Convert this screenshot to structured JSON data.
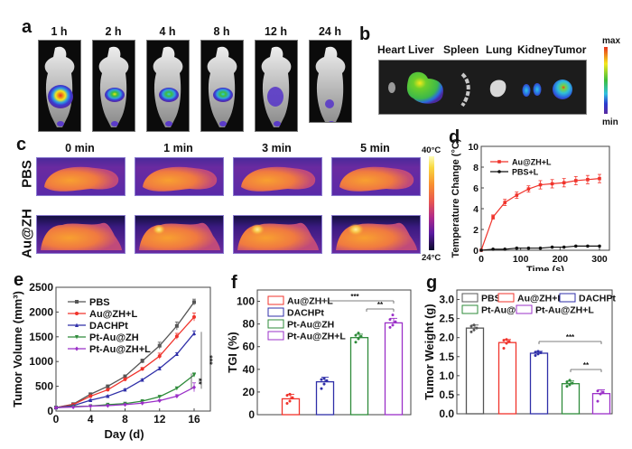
{
  "panels": {
    "a": {
      "label": "a",
      "timepoints": [
        "1 h",
        "2 h",
        "4 h",
        "8 h",
        "12 h",
        "24 h"
      ],
      "signal_intensity_relative": [
        1.0,
        0.75,
        0.55,
        0.55,
        0.35,
        0.2
      ]
    },
    "b": {
      "label": "b",
      "organs": [
        "Heart",
        "Liver",
        "Spleen",
        "Lung",
        "Kidney",
        "Tumor"
      ],
      "colorbar_max": "max",
      "colorbar_min": "min"
    },
    "c": {
      "label": "c",
      "timepoints": [
        "0 min",
        "1 min",
        "3 min",
        "5 min"
      ],
      "rows": [
        "PBS",
        "Au@ZH"
      ],
      "colorbar_max": "40°C",
      "colorbar_min": "24°C"
    },
    "d": {
      "label": "d"
    },
    "e": {
      "label": "e",
      "sig_long": "***",
      "sig_short": "**"
    },
    "f": {
      "label": "f",
      "sig_long": "***",
      "sig_short": "**"
    },
    "g": {
      "label": "g",
      "sig_long": "***",
      "sig_short": "**"
    }
  },
  "colors": {
    "PBS": "#555555",
    "Au@ZH+L": "#f0332b",
    "DACHPt": "#2f2fa8",
    "Pt-Au@ZH": "#2e8b3a",
    "Pt-Au@ZH+L": "#9b30c8",
    "PBS+L": "#111111"
  },
  "chart_data": [
    {
      "id": "d",
      "type": "line",
      "title": "",
      "xlabel": "Time (s)",
      "ylabel": "Temperature Change (°C)",
      "xlim": [
        0,
        300
      ],
      "ylim": [
        0,
        10
      ],
      "xticks": [
        0,
        100,
        200,
        300
      ],
      "yticks": [
        0,
        2,
        4,
        6,
        8,
        10
      ],
      "legend": "top-left",
      "x": [
        0,
        30,
        60,
        90,
        120,
        150,
        180,
        210,
        240,
        270,
        300
      ],
      "series": [
        {
          "name": "Au@ZH+L",
          "values": [
            0,
            3.2,
            4.6,
            5.3,
            5.9,
            6.3,
            6.4,
            6.5,
            6.7,
            6.8,
            6.9
          ],
          "errors": [
            0,
            0.2,
            0.3,
            0.3,
            0.3,
            0.4,
            0.4,
            0.4,
            0.4,
            0.4,
            0.4
          ]
        },
        {
          "name": "PBS+L",
          "values": [
            0,
            0.1,
            0.1,
            0.2,
            0.2,
            0.2,
            0.3,
            0.3,
            0.4,
            0.4,
            0.4
          ],
          "errors": [
            0,
            0.05,
            0.05,
            0.05,
            0.05,
            0.05,
            0.05,
            0.05,
            0.05,
            0.05,
            0.05
          ]
        }
      ]
    },
    {
      "id": "e",
      "type": "line",
      "title": "",
      "xlabel": "Day (d)",
      "ylabel": "Tumor Volume (mm³)",
      "xlim": [
        0,
        18
      ],
      "ylim": [
        0,
        2500
      ],
      "xticks": [
        0,
        4,
        8,
        12,
        16
      ],
      "yticks": [
        0,
        500,
        1000,
        1500,
        2000,
        2500
      ],
      "legend": "top-left",
      "x": [
        0,
        2,
        4,
        6,
        8,
        10,
        12,
        14,
        16
      ],
      "series": [
        {
          "name": "PBS",
          "marker": "square",
          "values": [
            70,
            140,
            340,
            500,
            700,
            1010,
            1320,
            1720,
            2200
          ],
          "errors": [
            10,
            15,
            20,
            20,
            30,
            40,
            70,
            80,
            60
          ]
        },
        {
          "name": "Au@ZH+L",
          "marker": "circle",
          "values": [
            70,
            130,
            300,
            430,
            640,
            850,
            1110,
            1510,
            1900
          ],
          "errors": [
            10,
            15,
            20,
            20,
            30,
            30,
            60,
            60,
            80
          ]
        },
        {
          "name": "DACHPt",
          "marker": "triangle-up",
          "values": [
            70,
            110,
            220,
            300,
            430,
            630,
            860,
            1150,
            1570
          ],
          "errors": [
            10,
            10,
            15,
            15,
            20,
            20,
            30,
            30,
            50
          ]
        },
        {
          "name": "Pt-Au@ZH",
          "marker": "triangle-down",
          "values": [
            70,
            90,
            100,
            130,
            150,
            200,
            290,
            460,
            730
          ],
          "errors": [
            10,
            10,
            10,
            10,
            15,
            15,
            20,
            20,
            40
          ]
        },
        {
          "name": "Pt-Au@ZH+L",
          "marker": "diamond",
          "values": [
            70,
            80,
            100,
            110,
            130,
            160,
            210,
            300,
            480
          ],
          "errors": [
            10,
            10,
            10,
            10,
            10,
            15,
            20,
            30,
            90
          ]
        }
      ]
    },
    {
      "id": "f",
      "type": "bar",
      "title": "",
      "xlabel": "",
      "ylabel": "TGI (%)",
      "ylim": [
        0,
        110
      ],
      "yticks": [
        0,
        20,
        40,
        60,
        80,
        100
      ],
      "legend": "top-left",
      "categories": [
        "Au@ZH+L",
        "DACHPt",
        "Pt-Au@ZH",
        "Pt-Au@ZH+L"
      ],
      "values": [
        14,
        29,
        68,
        81
      ],
      "errors": [
        4,
        4,
        3,
        4
      ],
      "points": [
        [
          10,
          12,
          15,
          17,
          18
        ],
        [
          23,
          27,
          30,
          31,
          32
        ],
        [
          64,
          67,
          69,
          70,
          72
        ],
        [
          77,
          79,
          82,
          84,
          88
        ]
      ],
      "significance": [
        {
          "from": "DACHPt",
          "to": "Pt-Au@ZH+L",
          "label": "***"
        },
        {
          "from": "Pt-Au@ZH",
          "to": "Pt-Au@ZH+L",
          "label": "**"
        }
      ]
    },
    {
      "id": "g",
      "type": "bar",
      "title": "",
      "xlabel": "",
      "ylabel": "Tumor Weight (g)",
      "ylim": [
        0,
        3.25
      ],
      "yticks": [
        0.0,
        0.5,
        1.0,
        1.5,
        2.0,
        2.5,
        3.0
      ],
      "legend": "top",
      "categories": [
        "PBS",
        "Au@ZH+L",
        "DACHPt",
        "Pt-Au@ZH",
        "Pt-Au@ZH+L"
      ],
      "values": [
        2.25,
        1.87,
        1.59,
        0.79,
        0.53
      ],
      "errors": [
        0.08,
        0.08,
        0.05,
        0.07,
        0.1
      ],
      "points": [
        [
          2.15,
          2.2,
          2.25,
          2.3,
          2.33
        ],
        [
          1.72,
          1.85,
          1.9,
          1.93,
          1.95
        ],
        [
          1.53,
          1.57,
          1.6,
          1.62,
          1.64
        ],
        [
          0.72,
          0.76,
          0.8,
          0.84,
          0.88
        ],
        [
          0.33,
          0.52,
          0.57,
          0.6
        ]
      ],
      "significance": [
        {
          "from": "DACHPt",
          "to": "Pt-Au@ZH+L",
          "label": "***"
        },
        {
          "from": "Pt-Au@ZH",
          "to": "Pt-Au@ZH+L",
          "label": "**"
        }
      ]
    }
  ]
}
